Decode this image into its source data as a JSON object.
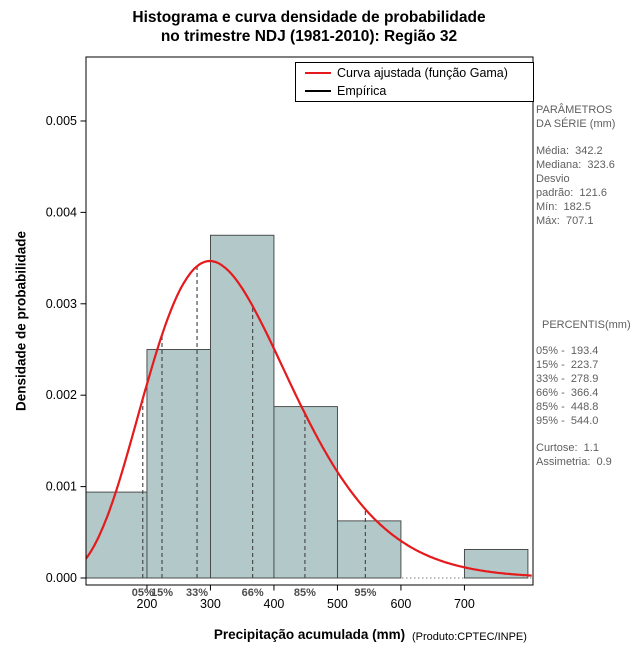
{
  "title": {
    "line1": "Histograma e curva densidade de probabilidade",
    "line2": "no trimestre NDJ (1981-2010): Região 32"
  },
  "axes": {
    "x_label": "Precipitação acumulada (mm)",
    "x_label_suffix": "(Produto:CPTEC/INPE)",
    "y_label": "Densidade de probabilidade",
    "x_ticks": [
      {
        "v": 200,
        "label": "200"
      },
      {
        "v": 300,
        "label": "300"
      },
      {
        "v": 400,
        "label": "400"
      },
      {
        "v": 500,
        "label": "500"
      },
      {
        "v": 600,
        "label": "600"
      },
      {
        "v": 700,
        "label": "700"
      }
    ],
    "y_ticks": [
      {
        "v": 0.0,
        "label": "0.000"
      },
      {
        "v": 0.001,
        "label": "0.001"
      },
      {
        "v": 0.002,
        "label": "0.002"
      },
      {
        "v": 0.003,
        "label": "0.003"
      },
      {
        "v": 0.004,
        "label": "0.004"
      },
      {
        "v": 0.005,
        "label": "0.005"
      }
    ],
    "xlim": [
      104,
      808
    ],
    "ylim": [
      0,
      0.0057
    ],
    "grid": false
  },
  "legend": {
    "position": "top-right-inside",
    "items": [
      {
        "label": "Curva ajustada (função Gama)",
        "color": "#e41a1c"
      },
      {
        "label": "Empírica",
        "color": "#000000"
      }
    ]
  },
  "chart_data": {
    "type": "bar",
    "subtype": "histogram-with-density-curve",
    "title": "Histograma e curva densidade de probabilidade no trimestre NDJ (1981-2010): Região 32",
    "xlabel": "Precipitação acumulada (mm)",
    "ylabel": "Densidade de probabilidade",
    "bin_edges": [
      100,
      200,
      300,
      400,
      500,
      600,
      700,
      800
    ],
    "bin_densities": [
      0.00094,
      0.0025,
      0.00375,
      0.001875,
      0.000625,
      0,
      0.0003125
    ],
    "gamma_curve": {
      "shape": 7.92,
      "scale": 43.21
    },
    "percentile_lines": [
      {
        "label": "05%",
        "x": 193.4
      },
      {
        "label": "15%",
        "x": 223.7
      },
      {
        "label": "33%",
        "x": 278.9
      },
      {
        "label": "66%",
        "x": 366.4
      },
      {
        "label": "85%",
        "x": 448.8
      },
      {
        "label": "95%",
        "x": 544.0
      }
    ],
    "stats": {
      "media": 342.2,
      "mediana": 323.6,
      "desvio_padrao": 121.6,
      "min": 182.5,
      "max": 707.1,
      "curtose": 1.1,
      "assimetria": 0.9
    },
    "colors": {
      "bar_fill": "#b3c9c9",
      "bar_stroke": "#3f3f3f",
      "curve": "#e41a1c",
      "dashed_line": "#4d4d4d",
      "percent_label": "#4d4d4d",
      "zero_line": "#808080",
      "axis": "#000000"
    }
  },
  "side_panel": {
    "sections": [
      {
        "type": "header",
        "lines": [
          "PARÂMETROS",
          "DA SÉRIE (mm)"
        ]
      },
      {
        "type": "stats",
        "lines": [
          "Média:  342.2",
          "Mediana:  323.6",
          "Desvio",
          "padrão:  121.6",
          "Mín:  182.5",
          "Máx:  707.1"
        ]
      },
      {
        "type": "header2",
        "lines": [
          "PERCENTIS(mm)"
        ]
      },
      {
        "type": "percentiles",
        "lines": [
          "05% -  193.4",
          "15% -  223.7",
          "33% -  278.9",
          "66% -  366.4",
          "85% -  448.8",
          "95% -  544.0"
        ]
      },
      {
        "type": "moments",
        "lines": [
          "Curtose:  1.1",
          "Assimetria:  0.9"
        ]
      }
    ]
  }
}
